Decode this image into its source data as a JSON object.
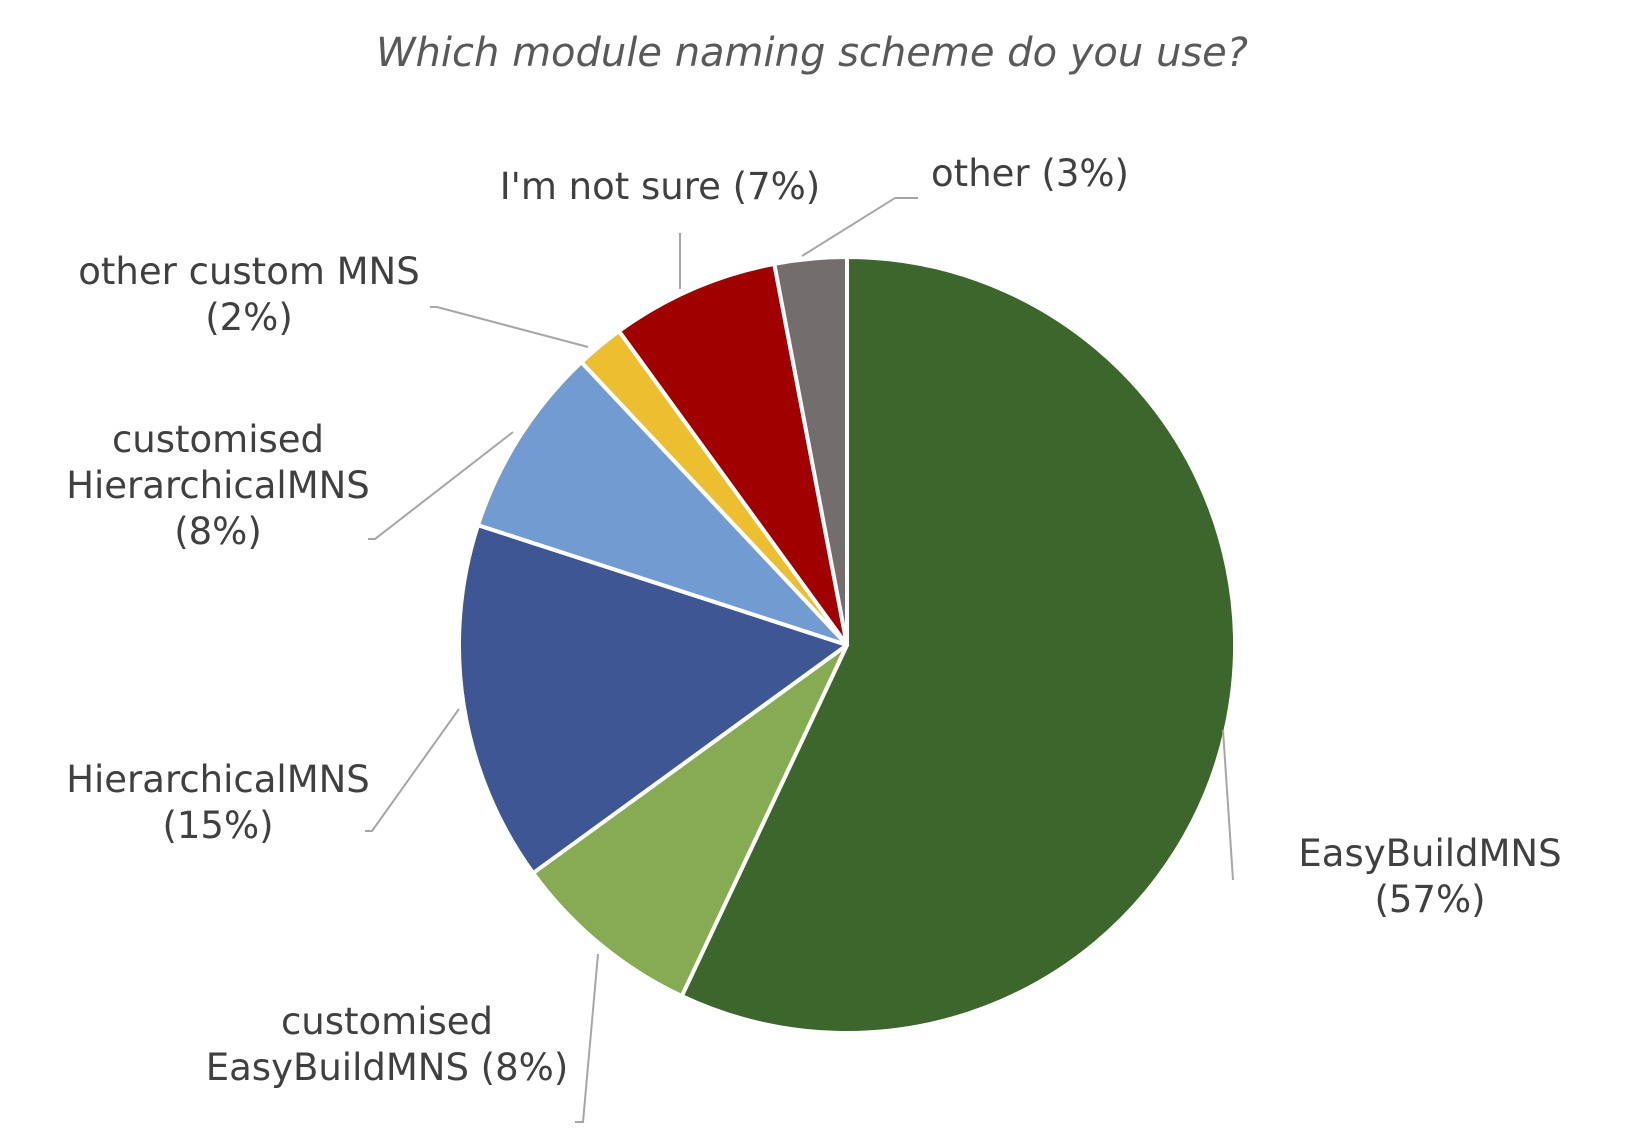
{
  "chart_data": {
    "type": "pie",
    "title": "Which module naming scheme do you use?",
    "slices": [
      {
        "name": "EasyBuildMNS",
        "value": 57,
        "color": "#3d662d",
        "label_lines": [
          "EasyBuildMNS",
          "(57%)"
        ]
      },
      {
        "name": "customised EasyBuildMNS",
        "value": 8,
        "color": "#86ab53",
        "label_lines": [
          "customised",
          "EasyBuildMNS (8%)"
        ]
      },
      {
        "name": "HierarchicalMNS",
        "value": 15,
        "color": "#3e5693",
        "label_lines": [
          "HierarchicalMNS",
          "(15%)"
        ]
      },
      {
        "name": "customised HierarchicalMNS",
        "value": 8,
        "color": "#729bd2",
        "label_lines": [
          "customised",
          "HierarchicalMNS",
          "(8%)"
        ]
      },
      {
        "name": "other custom MNS",
        "value": 2,
        "color": "#ecbe30",
        "label_lines": [
          "other custom MNS",
          "(2%)"
        ]
      },
      {
        "name": "I'm not sure",
        "value": 7,
        "color": "#a10000",
        "label_lines": [
          "I'm not sure (7%)"
        ]
      },
      {
        "name": "other",
        "value": 3,
        "color": "#736e6d",
        "label_lines": [
          "other (3%)"
        ]
      }
    ],
    "start": "12 o'clock",
    "direction": "clockwise",
    "legend": "none"
  }
}
